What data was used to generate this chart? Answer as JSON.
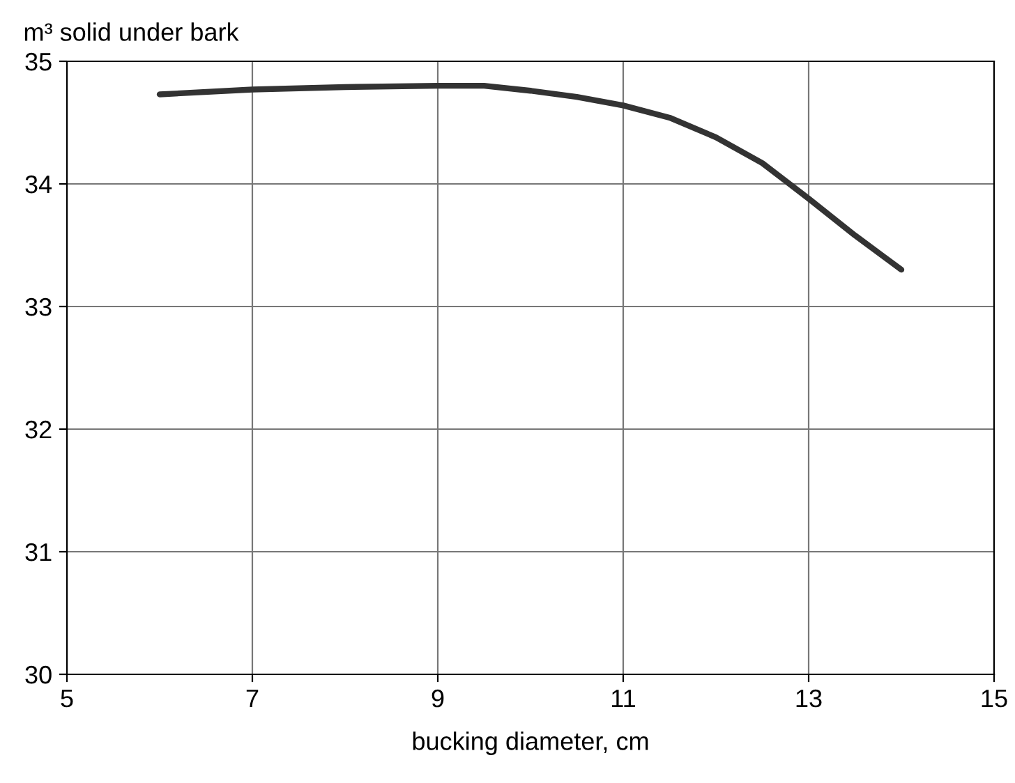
{
  "chart_data": {
    "type": "line",
    "xlabel": "bucking diameter, cm",
    "ylabel": "m³ solid under bark",
    "x": [
      6,
      7,
      8,
      9,
      9.5,
      10,
      10.5,
      11,
      11.5,
      12,
      12.5,
      13,
      13.5,
      14
    ],
    "series": [
      {
        "color": "#333333",
        "values": [
          34.73,
          34.77,
          34.79,
          34.8,
          34.8,
          34.76,
          34.71,
          34.64,
          34.54,
          34.38,
          34.17,
          33.88,
          33.58,
          33.3
        ]
      }
    ],
    "xlim": [
      5,
      15
    ],
    "xticks": [
      5,
      7,
      9,
      11,
      13,
      15
    ],
    "ylim": [
      30,
      35
    ],
    "yticks": [
      30,
      31,
      32,
      33,
      34,
      35
    ],
    "grid": true,
    "marker": "none",
    "line_style": "solid"
  }
}
